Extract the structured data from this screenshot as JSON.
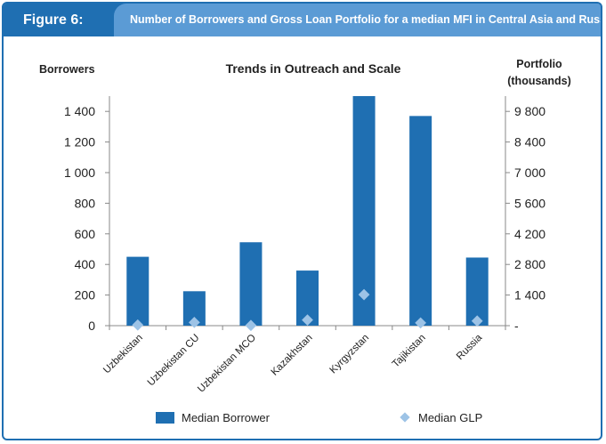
{
  "header": {
    "figure_label": "Figure 6:",
    "title": "Number of Borrowers and Gross Loan Portfolio for a median MFI in Central Asia and Russia"
  },
  "colors": {
    "brand_blue": "#1f6fb2",
    "header_light": "#5b9bd5",
    "bar": "#1f6fb2",
    "marker": "#9dc3e6"
  },
  "chart_data": {
    "type": "bar",
    "title": "Trends in Outreach and Scale",
    "ylabel_left": "Borrowers",
    "ylabel_right_line1": "Portfolio",
    "ylabel_right_line2": "(thousands)",
    "categories": [
      "Uzbekistan",
      "Uzbekistan CU",
      "Uzbekistan MCO",
      "Kazakhstan",
      "Kyrgyzstan",
      "Tajikistan",
      "Russia"
    ],
    "series": [
      {
        "name": "Median Borrower",
        "type": "bar",
        "axis": "left",
        "values": [
          450,
          225,
          545,
          360,
          1500,
          1370,
          445
        ]
      },
      {
        "name": "Median GLP",
        "type": "scatter",
        "axis": "right",
        "values": [
          30,
          150,
          10,
          260,
          1420,
          125,
          215
        ]
      }
    ],
    "ylim_left": [
      0,
      1500
    ],
    "yticks_left": [
      "0",
      "200",
      "400",
      "600",
      "800",
      "1 000",
      "1 200",
      "1 400"
    ],
    "ylim_right": [
      0,
      10500
    ],
    "yticks_right": [
      "-",
      "1 400",
      "2 800",
      "4 200",
      "5 600",
      "7 000",
      "8 400",
      "9 800"
    ],
    "legend_position": "bottom"
  }
}
